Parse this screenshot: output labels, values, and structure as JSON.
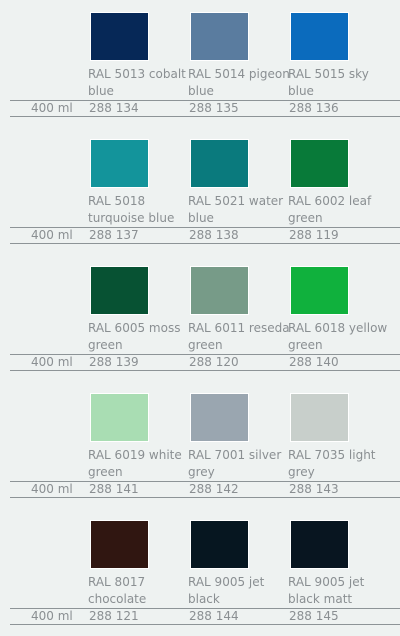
{
  "groups": [
    {
      "size": "400 ml",
      "items": [
        {
          "name": [
            "RAL 5013 cobalt",
            "blue"
          ],
          "code": "288 134",
          "color": "#062857"
        },
        {
          "name": [
            "RAL 5014 pigeon",
            "blue"
          ],
          "code": "288 135",
          "color": "#5a7c9f"
        },
        {
          "name": [
            "RAL 5015 sky",
            "blue"
          ],
          "code": "288 136",
          "color": "#0b6bbd"
        }
      ]
    },
    {
      "size": "400 ml",
      "items": [
        {
          "name": [
            "RAL 5018",
            "turquoise blue"
          ],
          "code": "288 137",
          "color": "#13949b"
        },
        {
          "name": [
            "RAL 5021 water",
            "blue"
          ],
          "code": "288 138",
          "color": "#0a7a7d"
        },
        {
          "name": [
            "RAL 6002 leaf",
            "green"
          ],
          "code": "288 119",
          "color": "#087a39"
        }
      ]
    },
    {
      "size": "400 ml",
      "items": [
        {
          "name": [
            "RAL 6005 moss",
            "green"
          ],
          "code": "288 139",
          "color": "#075233"
        },
        {
          "name": [
            "RAL 6011 reseda",
            "green"
          ],
          "code": "288 120",
          "color": "#779b88"
        },
        {
          "name": [
            "RAL 6018 yellow",
            "green"
          ],
          "code": "288 140",
          "color": "#10b13d"
        }
      ]
    },
    {
      "size": "400 ml",
      "items": [
        {
          "name": [
            "RAL 6019 white",
            "green"
          ],
          "code": "288 141",
          "color": "#a9ddb3"
        },
        {
          "name": [
            "RAL 7001 silver",
            "grey"
          ],
          "code": "288 142",
          "color": "#9aa6b0"
        },
        {
          "name": [
            "RAL 7035 light",
            "grey"
          ],
          "code": "288 143",
          "color": "#c8cfcb"
        }
      ]
    },
    {
      "size": "400 ml",
      "items": [
        {
          "name": [
            "RAL 8017",
            "chocolate"
          ],
          "code": "288 121",
          "color": "#301611"
        },
        {
          "name": [
            "RAL 9005 jet",
            "black"
          ],
          "code": "288 144",
          "color": "#061620"
        },
        {
          "name": [
            "RAL 9005 jet",
            "black matt"
          ],
          "code": "288 145",
          "color": "#081520"
        }
      ]
    }
  ]
}
